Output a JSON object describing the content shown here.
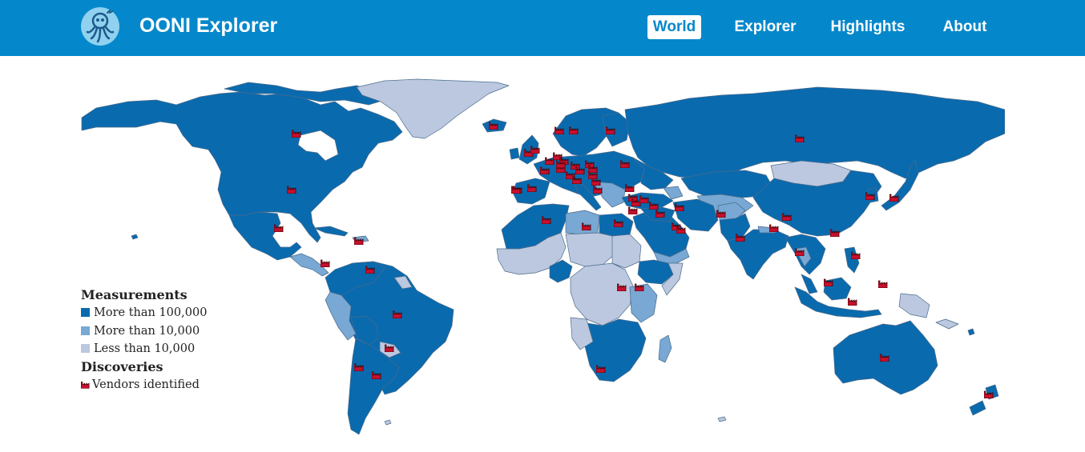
{
  "nav": {
    "brand": "OONI Explorer",
    "links": [
      {
        "label": "World",
        "active": true
      },
      {
        "label": "Explorer",
        "active": false
      },
      {
        "label": "Highlights",
        "active": false
      },
      {
        "label": "About",
        "active": false
      }
    ]
  },
  "legend": {
    "measurements_title": "Measurements",
    "levels": [
      {
        "label": "More than 100,000",
        "color": "#0a6aae"
      },
      {
        "label": "More than 10,000",
        "color": "#78a8d3"
      },
      {
        "label": "Less than 10,000",
        "color": "#bcc8e0"
      }
    ],
    "discoveries_title": "Discoveries",
    "vendors_label": "Vendors identified",
    "vendor_marker_color": "#c8102e"
  },
  "map": {
    "colors": {
      "high": "#0a6aae",
      "medium": "#78a8d3",
      "low": "#bcc8e0",
      "border": "#4a6b8a"
    }
  }
}
